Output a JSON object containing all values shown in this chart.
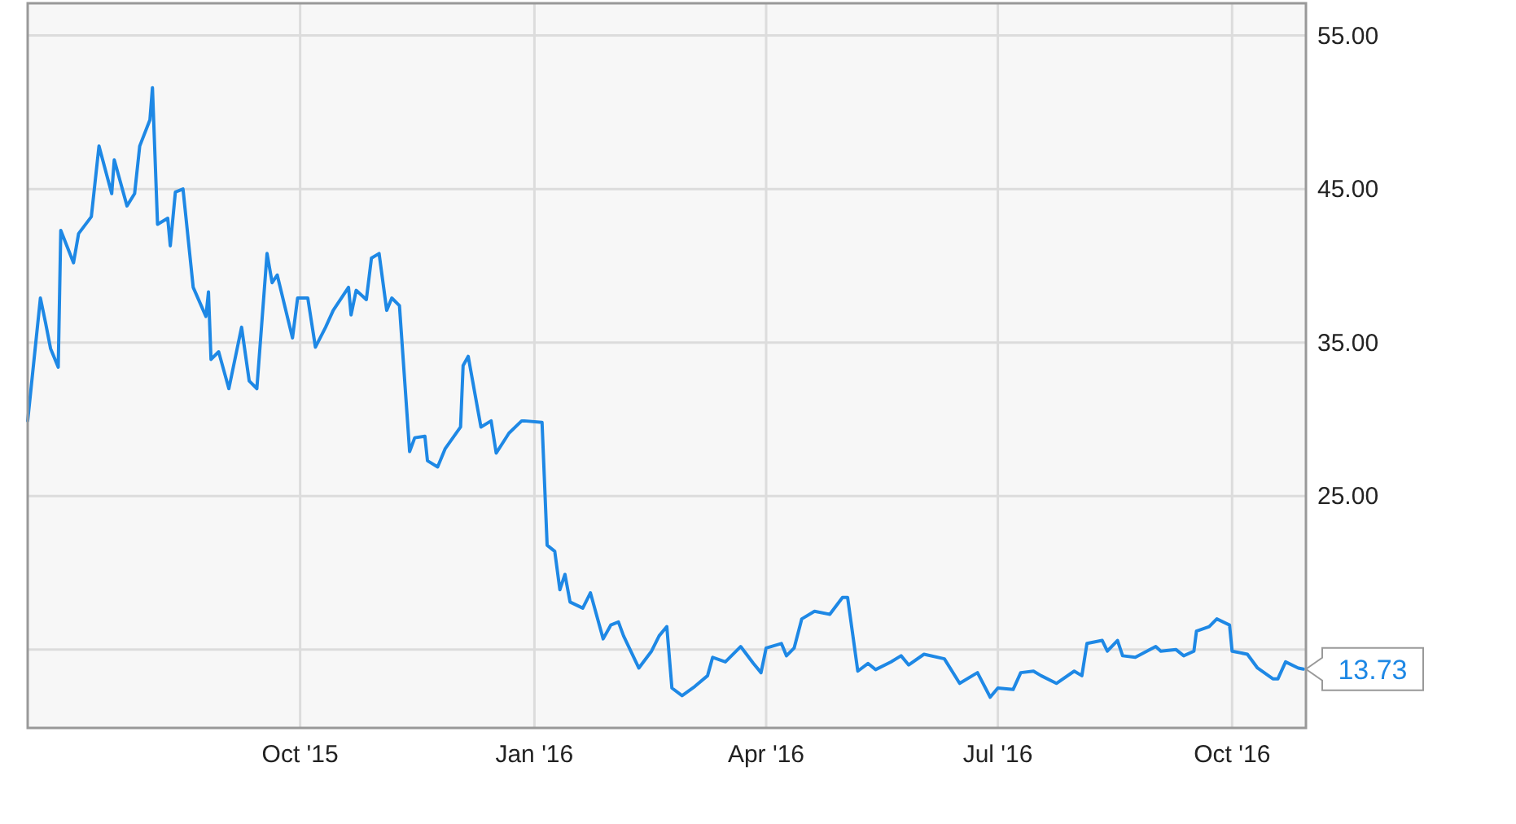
{
  "chart_data": {
    "type": "line",
    "x": [
      "2015-06-16",
      "2015-06-21",
      "2015-06-23",
      "2015-06-25",
      "2015-06-28",
      "2015-06-29",
      "2015-07-04",
      "2015-07-06",
      "2015-07-11",
      "2015-07-14",
      "2015-07-19",
      "2015-07-20",
      "2015-07-25",
      "2015-07-28",
      "2015-07-30",
      "2015-08-03",
      "2015-08-04",
      "2015-08-06",
      "2015-08-10",
      "2015-08-11",
      "2015-08-13",
      "2015-08-16",
      "2015-08-20",
      "2015-08-25",
      "2015-08-26",
      "2015-08-27",
      "2015-08-30",
      "2015-09-03",
      "2015-09-08",
      "2015-09-11",
      "2015-09-14",
      "2015-09-18",
      "2015-09-20",
      "2015-09-22",
      "2015-09-28",
      "2015-09-30",
      "2015-10-04",
      "2015-10-07",
      "2015-10-11",
      "2015-10-14",
      "2015-10-20",
      "2015-10-21",
      "2015-10-23",
      "2015-10-27",
      "2015-10-29",
      "2015-11-01",
      "2015-11-04",
      "2015-11-06",
      "2015-11-09",
      "2015-11-13",
      "2015-11-15",
      "2015-11-19",
      "2015-11-20",
      "2015-11-24",
      "2015-11-27",
      "2015-12-03",
      "2015-12-04",
      "2015-12-06",
      "2015-12-11",
      "2015-12-15",
      "2015-12-17",
      "2015-12-22",
      "2015-12-27",
      "2015-12-28",
      "2016-01-04",
      "2016-01-06",
      "2016-01-09",
      "2016-01-11",
      "2016-01-13",
      "2016-01-15",
      "2016-01-20",
      "2016-01-23",
      "2016-01-28",
      "2016-01-31",
      "2016-02-03",
      "2016-02-05",
      "2016-02-11",
      "2016-02-16",
      "2016-02-19",
      "2016-02-22",
      "2016-02-24",
      "2016-02-28",
      "2016-03-04",
      "2016-03-09",
      "2016-03-11",
      "2016-03-16",
      "2016-03-22",
      "2016-03-27",
      "2016-03-30",
      "2016-04-01",
      "2016-04-07",
      "2016-04-09",
      "2016-04-12",
      "2016-04-15",
      "2016-04-20",
      "2016-04-26",
      "2016-05-01",
      "2016-05-03",
      "2016-05-07",
      "2016-05-11",
      "2016-05-14",
      "2016-05-20",
      "2016-05-24",
      "2016-05-27",
      "2016-06-02",
      "2016-06-10",
      "2016-06-16",
      "2016-06-23",
      "2016-06-28",
      "2016-07-01",
      "2016-07-07",
      "2016-07-10",
      "2016-07-15",
      "2016-07-18",
      "2016-07-24",
      "2016-07-31",
      "2016-08-03",
      "2016-08-05",
      "2016-08-11",
      "2016-08-13",
      "2016-08-17",
      "2016-08-19",
      "2016-08-24",
      "2016-09-01",
      "2016-09-03",
      "2016-09-09",
      "2016-09-12",
      "2016-09-16",
      "2016-09-17",
      "2016-09-22",
      "2016-09-25",
      "2016-09-30",
      "2016-10-01",
      "2016-10-07",
      "2016-10-11",
      "2016-10-17",
      "2016-10-19",
      "2016-10-22",
      "2016-10-27",
      "2016-10-29"
    ],
    "series": [
      {
        "color": "#1e88e5",
        "values": [
          29.9,
          37.9,
          36.3,
          34.6,
          33.4,
          42.3,
          40.2,
          42.1,
          43.2,
          47.8,
          44.7,
          46.9,
          43.9,
          44.7,
          47.8,
          49.5,
          51.6,
          42.7,
          43.1,
          41.3,
          44.8,
          45.0,
          38.6,
          36.7,
          38.3,
          33.9,
          34.4,
          32.0,
          36.0,
          32.5,
          32.0,
          40.8,
          38.9,
          39.4,
          35.3,
          37.9,
          37.9,
          34.7,
          36.0,
          37.1,
          38.6,
          36.8,
          38.4,
          37.8,
          40.5,
          40.8,
          37.1,
          37.9,
          37.4,
          27.9,
          28.8,
          28.9,
          27.3,
          26.9,
          28.1,
          29.5,
          33.5,
          34.1,
          29.5,
          29.9,
          27.8,
          29.1,
          29.9,
          29.9,
          29.8,
          21.8,
          21.4,
          18.9,
          19.9,
          18.1,
          17.7,
          18.7,
          15.7,
          16.6,
          16.8,
          15.9,
          13.8,
          14.9,
          15.9,
          16.5,
          12.5,
          12.0,
          12.6,
          13.3,
          14.5,
          14.2,
          15.2,
          14.1,
          13.5,
          15.1,
          15.4,
          14.6,
          15.1,
          17.0,
          17.5,
          17.3,
          18.4,
          18.4,
          13.6,
          14.1,
          13.7,
          14.2,
          14.6,
          14.0,
          14.7,
          14.4,
          12.8,
          13.5,
          11.9,
          12.5,
          12.4,
          13.5,
          13.6,
          13.3,
          12.8,
          13.6,
          13.3,
          15.4,
          15.6,
          14.9,
          15.6,
          14.6,
          14.5,
          15.2,
          14.9,
          15.0,
          14.6,
          14.9,
          16.2,
          16.5,
          17.0,
          16.6,
          14.9,
          14.7,
          13.8,
          13.1,
          13.1,
          14.2,
          13.8,
          13.73
        ]
      }
    ],
    "xlim": [
      "2015-06-16",
      "2016-10-30"
    ],
    "xticks": [
      {
        "value": "2015-10-01",
        "label": "Oct '15"
      },
      {
        "value": "2016-01-01",
        "label": "Jan '16"
      },
      {
        "value": "2016-04-01",
        "label": "Apr '16"
      },
      {
        "value": "2016-07-01",
        "label": "Jul '16"
      },
      {
        "value": "2016-10-01",
        "label": "Oct '16"
      }
    ],
    "ylim": [
      9.9,
      57.1
    ],
    "yticks": [
      {
        "value": 15,
        "label": null
      },
      {
        "value": 25,
        "label": "25.00"
      },
      {
        "value": 35,
        "label": "35.00"
      },
      {
        "value": 45,
        "label": "45.00"
      },
      {
        "value": 55,
        "label": "55.00"
      }
    ],
    "annotations": [
      {
        "text": "13.73",
        "x": "2016-10-29",
        "y": 13.73
      }
    ],
    "grid": true,
    "marker": "none",
    "line_style": "solid"
  }
}
